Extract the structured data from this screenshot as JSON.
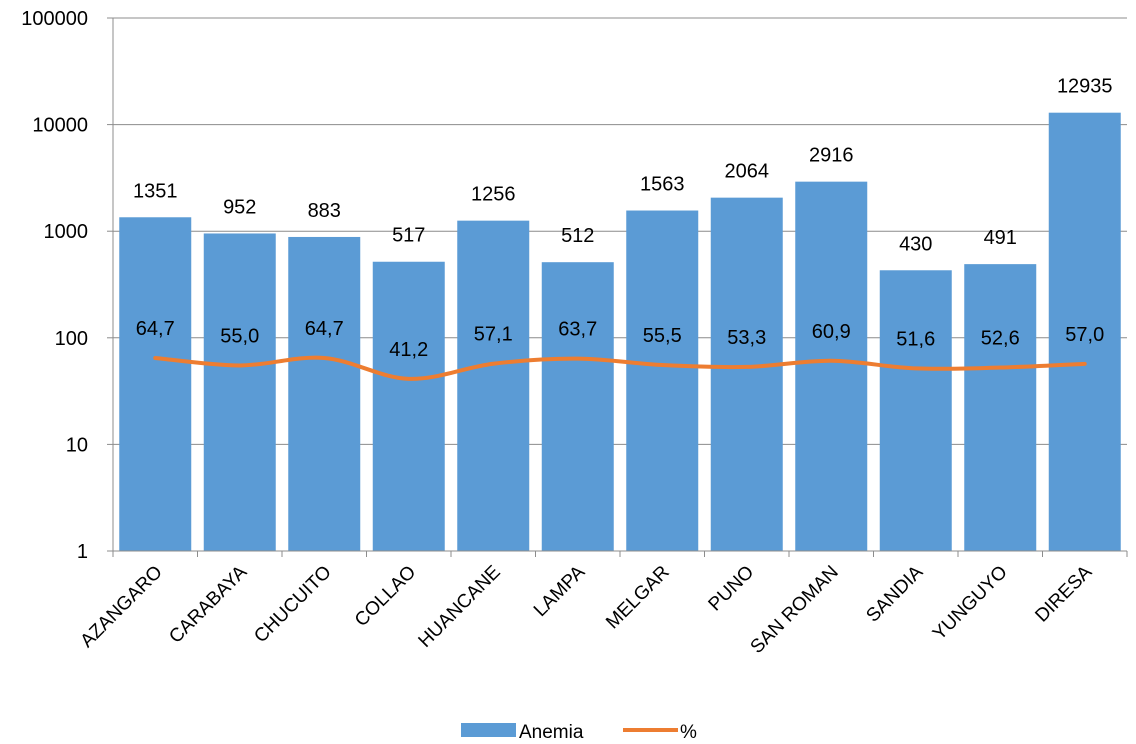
{
  "chart_data": {
    "type": "bar",
    "title": "",
    "xlabel": "",
    "ylabel": "",
    "categories": [
      "AZANGARO",
      "CARABAYA",
      "CHUCUITO",
      "COLLAO",
      "HUANCANE",
      "LAMPA",
      "MELGAR",
      "PUNO",
      "SAN ROMAN",
      "SANDIA",
      "YUNGUYO",
      "DIRESA"
    ],
    "y_scale": "log",
    "ylim": [
      1,
      100000
    ],
    "y_ticks": [
      "1",
      "10",
      "100",
      "1000",
      "10000",
      "100000"
    ],
    "grid": true,
    "legend_position": "bottom",
    "series": [
      {
        "name": "Anemia",
        "type": "bar",
        "color": "#5B9BD5",
        "values": [
          1351,
          952,
          883,
          517,
          1256,
          512,
          1563,
          2064,
          2916,
          430,
          491,
          12935
        ],
        "labels": [
          "1351",
          "952",
          "883",
          "517",
          "1256",
          "512",
          "1563",
          "2064",
          "2916",
          "430",
          "491",
          "12935"
        ]
      },
      {
        "name": "%",
        "type": "line",
        "color": "#ED7D31",
        "values": [
          64.7,
          55.0,
          64.7,
          41.2,
          57.1,
          63.7,
          55.5,
          53.3,
          60.9,
          51.6,
          52.6,
          57.0
        ],
        "labels": [
          "64,7",
          "55,0",
          "64,7",
          "41,2",
          "57,1",
          "63,7",
          "55,5",
          "53,3",
          "60,9",
          "51,6",
          "52,6",
          "57,0"
        ]
      }
    ]
  }
}
